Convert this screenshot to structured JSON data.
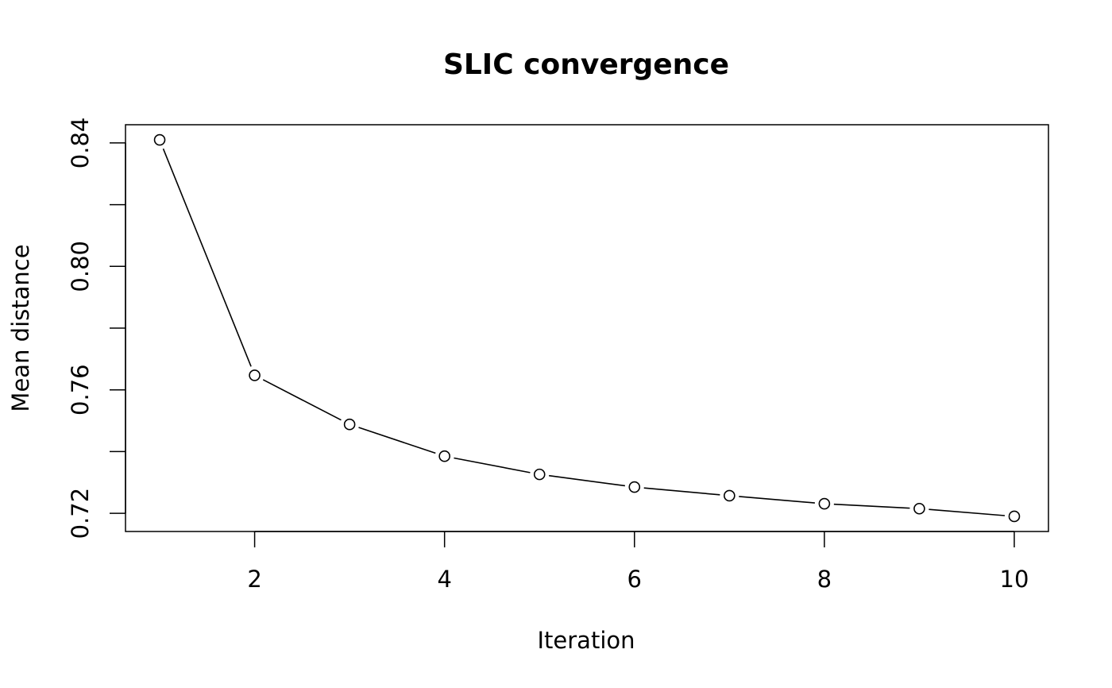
{
  "chart_data": {
    "type": "line",
    "title": "SLIC convergence",
    "xlabel": "Iteration",
    "ylabel": "Mean distance",
    "x": [
      1,
      2,
      3,
      4,
      5,
      6,
      7,
      8,
      9,
      10
    ],
    "series": [
      {
        "name": "Mean distance",
        "values": [
          0.841,
          0.7647,
          0.7488,
          0.7385,
          0.7326,
          0.7285,
          0.7257,
          0.7231,
          0.7215,
          0.719
        ]
      }
    ],
    "xlim": [
      0.64,
      10.36
    ],
    "ylim": [
      0.7141,
      0.8459
    ],
    "xticks": [
      2,
      4,
      6,
      8,
      10
    ],
    "xtick_labels": [
      "2",
      "4",
      "6",
      "8",
      "10"
    ],
    "yticks": [
      0.72,
      0.74,
      0.76,
      0.78,
      0.8,
      0.82,
      0.84
    ],
    "ytick_labels": [
      "0.72",
      "",
      "0.76",
      "",
      "0.80",
      "",
      "0.84"
    ],
    "grid": false,
    "marker": "open-circle",
    "colors": {
      "line": "#000000",
      "background": "#ffffff"
    }
  }
}
